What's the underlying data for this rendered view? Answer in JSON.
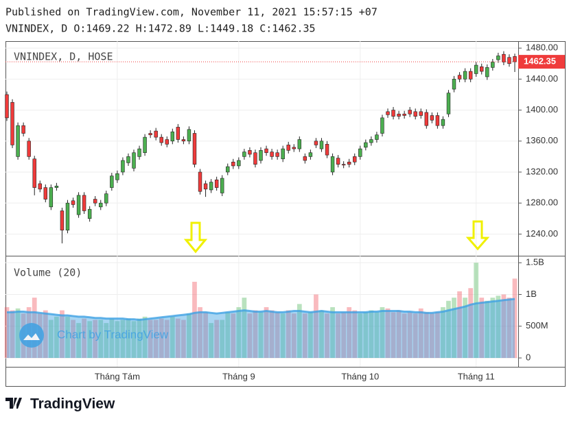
{
  "header": "Published on TradingView.com, November 11, 2021 15:57:15 +07",
  "ohlc_line": "VNINDEX, D O:1469.22 H:1472.89 L:1449.18 C:1462.35",
  "footer": "TradingView",
  "watermark": "Chart by TradingView",
  "chart_data": [
    {
      "type": "candlestick",
      "legend": "VNINDEX, D, HOSE",
      "up_color": "#4caf50",
      "down_color": "#ef3b3b",
      "categories": [
        null,
        null,
        null,
        null,
        null,
        null,
        null,
        null,
        null,
        null,
        null,
        null,
        null,
        null,
        null,
        null,
        null,
        null,
        null,
        null,
        "Tháng Tám",
        null,
        null,
        null,
        null,
        null,
        null,
        null,
        null,
        null,
        null,
        null,
        null,
        null,
        null,
        null,
        null,
        null,
        null,
        null,
        null,
        null,
        "Tháng 9",
        null,
        null,
        null,
        null,
        null,
        null,
        null,
        null,
        null,
        null,
        null,
        null,
        null,
        null,
        null,
        null,
        null,
        null,
        null,
        null,
        null,
        "Tháng 10",
        null,
        null,
        null,
        null,
        null,
        null,
        null,
        null,
        null,
        null,
        null,
        null,
        null,
        null,
        null,
        null,
        null,
        null,
        null,
        null,
        "Tháng 11",
        null,
        null,
        null,
        null,
        null,
        null,
        null
      ],
      "open": [
        1420,
        1410,
        1340,
        1380,
        1360,
        1337,
        1305,
        1300,
        1275,
        1300,
        1270,
        1245,
        1283,
        1265,
        1290,
        1260,
        1285,
        1275,
        1280,
        1300,
        1310,
        1320,
        1332,
        1325,
        1340,
        1345,
        1370,
        1373,
        1365,
        1362,
        1360,
        1378,
        1362,
        1360,
        1370,
        1320,
        1305,
        1297,
        1310,
        1293,
        1320,
        1333,
        1328,
        1340,
        1348,
        1345,
        1335,
        1350,
        1346,
        1345,
        1337,
        1355,
        1352,
        1350,
        1340,
        1340,
        1360,
        1350,
        1356,
        1320,
        1338,
        1330,
        1333,
        1340,
        1340,
        1352,
        1358,
        1362,
        1370,
        1398,
        1400,
        1395,
        1395,
        1400,
        1398,
        1398,
        1397,
        1393,
        1393,
        1380,
        1395,
        1427,
        1445,
        1440,
        1450,
        1447,
        1456,
        1443,
        1455,
        1465,
        1472,
        1468,
        1469.22
      ],
      "high": [
        1424,
        1414,
        1384,
        1384,
        1364,
        1341,
        1309,
        1304,
        1304,
        1306,
        1274,
        1284,
        1287,
        1294,
        1294,
        1276,
        1289,
        1284,
        1296,
        1319,
        1322,
        1339,
        1344,
        1349,
        1354,
        1369,
        1374,
        1377,
        1369,
        1366,
        1376,
        1382,
        1366,
        1379,
        1374,
        1324,
        1309,
        1311,
        1314,
        1316,
        1331,
        1337,
        1339,
        1350,
        1352,
        1349,
        1352,
        1354,
        1350,
        1349,
        1354,
        1359,
        1356,
        1366,
        1344,
        1349,
        1364,
        1364,
        1360,
        1344,
        1342,
        1334,
        1337,
        1344,
        1354,
        1362,
        1366,
        1372,
        1394,
        1402,
        1404,
        1399,
        1399,
        1404,
        1402,
        1402,
        1401,
        1397,
        1397,
        1392,
        1426,
        1444,
        1449,
        1454,
        1454,
        1462,
        1460,
        1459,
        1466,
        1474,
        1476,
        1472,
        1472.89
      ],
      "low": [
        1386,
        1351,
        1336,
        1366,
        1336,
        1290,
        1294,
        1281,
        1271,
        1296,
        1228,
        1241,
        1274,
        1261,
        1266,
        1256,
        1276,
        1271,
        1276,
        1296,
        1306,
        1316,
        1328,
        1321,
        1336,
        1341,
        1364,
        1361,
        1354,
        1352,
        1356,
        1358,
        1356,
        1356,
        1326,
        1291,
        1288,
        1293,
        1296,
        1289,
        1316,
        1324,
        1324,
        1336,
        1339,
        1326,
        1331,
        1341,
        1336,
        1336,
        1333,
        1344,
        1346,
        1346,
        1331,
        1336,
        1351,
        1346,
        1338,
        1316,
        1326,
        1325,
        1326,
        1329,
        1336,
        1348,
        1354,
        1358,
        1366,
        1390,
        1388,
        1388,
        1389,
        1391,
        1388,
        1389,
        1376,
        1383,
        1376,
        1376,
        1391,
        1423,
        1436,
        1436,
        1436,
        1443,
        1446,
        1439,
        1451,
        1461,
        1458,
        1456,
        1449.18
      ],
      "close": [
        1390,
        1355,
        1380,
        1370,
        1340,
        1300,
        1298,
        1285,
        1300,
        1302,
        1245,
        1280,
        1278,
        1290,
        1270,
        1272,
        1280,
        1280,
        1292,
        1315,
        1318,
        1335,
        1340,
        1345,
        1350,
        1365,
        1368,
        1365,
        1358,
        1356,
        1372,
        1362,
        1360,
        1375,
        1330,
        1295,
        1298,
        1307,
        1300,
        1312,
        1327,
        1328,
        1335,
        1346,
        1343,
        1330,
        1348,
        1345,
        1340,
        1340,
        1350,
        1348,
        1350,
        1362,
        1335,
        1345,
        1355,
        1360,
        1342,
        1340,
        1330,
        1329,
        1330,
        1333,
        1350,
        1358,
        1362,
        1368,
        1390,
        1394,
        1392,
        1392,
        1393,
        1395,
        1392,
        1393,
        1380,
        1387,
        1380,
        1388,
        1422,
        1440,
        1440,
        1450,
        1440,
        1458,
        1450,
        1455,
        1462,
        1470,
        1462,
        1460,
        1462.35
      ],
      "ylim": [
        1212,
        1489
      ],
      "yticks": [
        {
          "value": 1240,
          "label": "1240.00"
        },
        {
          "value": 1280,
          "label": "1280.00"
        },
        {
          "value": 1320,
          "label": "1320.00"
        },
        {
          "value": 1360,
          "label": "1360.00"
        },
        {
          "value": 1400,
          "label": "1400.00"
        },
        {
          "value": 1440,
          "label": "1440.00"
        },
        {
          "value": 1480,
          "label": "1480.00"
        }
      ]
    },
    {
      "type": "volume",
      "legend": "Volume (20)",
      "ma_color": "#3fa1e3",
      "values": [
        0.8,
        0.75,
        0.78,
        0.7,
        0.8,
        0.95,
        0.7,
        0.75,
        0.6,
        0.65,
        0.75,
        0.65,
        0.6,
        0.55,
        0.62,
        0.58,
        0.6,
        0.6,
        0.55,
        0.62,
        0.58,
        0.6,
        0.62,
        0.58,
        0.62,
        0.65,
        0.6,
        0.6,
        0.62,
        0.6,
        0.65,
        0.62,
        0.6,
        0.7,
        1.2,
        0.8,
        0.72,
        0.55,
        0.6,
        0.6,
        0.72,
        0.7,
        0.8,
        0.95,
        0.7,
        0.75,
        0.72,
        0.8,
        0.75,
        0.72,
        0.7,
        0.75,
        0.7,
        0.85,
        0.7,
        0.72,
        1.0,
        0.75,
        0.7,
        0.8,
        0.7,
        0.72,
        0.8,
        0.75,
        0.7,
        0.72,
        0.75,
        0.72,
        0.8,
        0.78,
        0.72,
        0.75,
        0.7,
        0.72,
        0.7,
        0.78,
        0.72,
        0.7,
        0.72,
        0.8,
        0.9,
        0.95,
        1.05,
        0.95,
        1.1,
        1.5,
        0.95,
        0.9,
        0.95,
        0.98,
        1.0,
        0.95,
        1.25
      ],
      "ma": [
        0.72,
        0.72,
        0.73,
        0.73,
        0.72,
        0.72,
        0.71,
        0.7,
        0.69,
        0.68,
        0.67,
        0.67,
        0.66,
        0.65,
        0.65,
        0.64,
        0.63,
        0.63,
        0.62,
        0.62,
        0.62,
        0.62,
        0.61,
        0.61,
        0.6,
        0.61,
        0.62,
        0.63,
        0.64,
        0.65,
        0.66,
        0.67,
        0.68,
        0.69,
        0.71,
        0.72,
        0.72,
        0.71,
        0.7,
        0.71,
        0.72,
        0.73,
        0.74,
        0.75,
        0.74,
        0.73,
        0.73,
        0.74,
        0.73,
        0.72,
        0.72,
        0.73,
        0.74,
        0.74,
        0.73,
        0.72,
        0.73,
        0.74,
        0.73,
        0.72,
        0.72,
        0.72,
        0.72,
        0.72,
        0.72,
        0.72,
        0.73,
        0.73,
        0.74,
        0.74,
        0.74,
        0.74,
        0.73,
        0.73,
        0.72,
        0.72,
        0.71,
        0.71,
        0.72,
        0.73,
        0.75,
        0.77,
        0.79,
        0.81,
        0.84,
        0.86,
        0.87,
        0.88,
        0.89,
        0.9,
        0.91,
        0.92,
        0.93
      ],
      "ylim": [
        -0.14,
        1.61
      ],
      "yticks": [
        0,
        {
          "value": 0.5,
          "label": "500M"
        },
        {
          "value": 1,
          "label": "1B"
        },
        {
          "value": 1.5,
          "label": "1.5B"
        }
      ]
    }
  ]
}
